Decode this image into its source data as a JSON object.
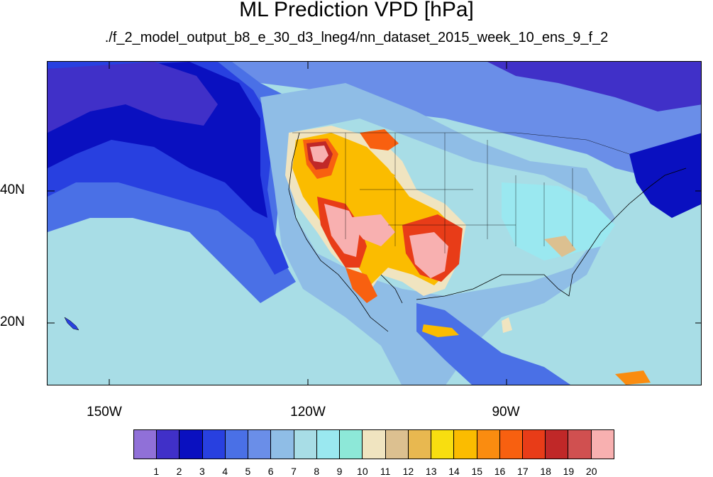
{
  "title": "ML Prediction VPD [hPa]",
  "subtitle": "./f_2_model_output_b8_e_30_d3_lneg4/nn_dataset_2015_week_10_ens_9_f_2",
  "map": {
    "background_color": "#a8dde6",
    "lon_labels": [
      "150W",
      "120W",
      "90W"
    ],
    "lat_labels": [
      "40N",
      "20N"
    ]
  },
  "colorbar": {
    "colors": [
      "#9070d8",
      "#4030c8",
      "#0a10c0",
      "#2840e0",
      "#4a70e6",
      "#6a8ee8",
      "#8fbde6",
      "#a8dde6",
      "#9ae8f0",
      "#8de8d8",
      "#f0e4c0",
      "#dcc090",
      "#e8b850",
      "#f8de10",
      "#fbbc00",
      "#fa8c10",
      "#f86010",
      "#e83c18",
      "#c02828",
      "#d05050",
      "#f8b0b0"
    ],
    "labels": [
      "1",
      "2",
      "3",
      "4",
      "5",
      "6",
      "7",
      "8",
      "9",
      "10",
      "11",
      "12",
      "13",
      "14",
      "15",
      "16",
      "17",
      "18",
      "19",
      "20"
    ]
  }
}
